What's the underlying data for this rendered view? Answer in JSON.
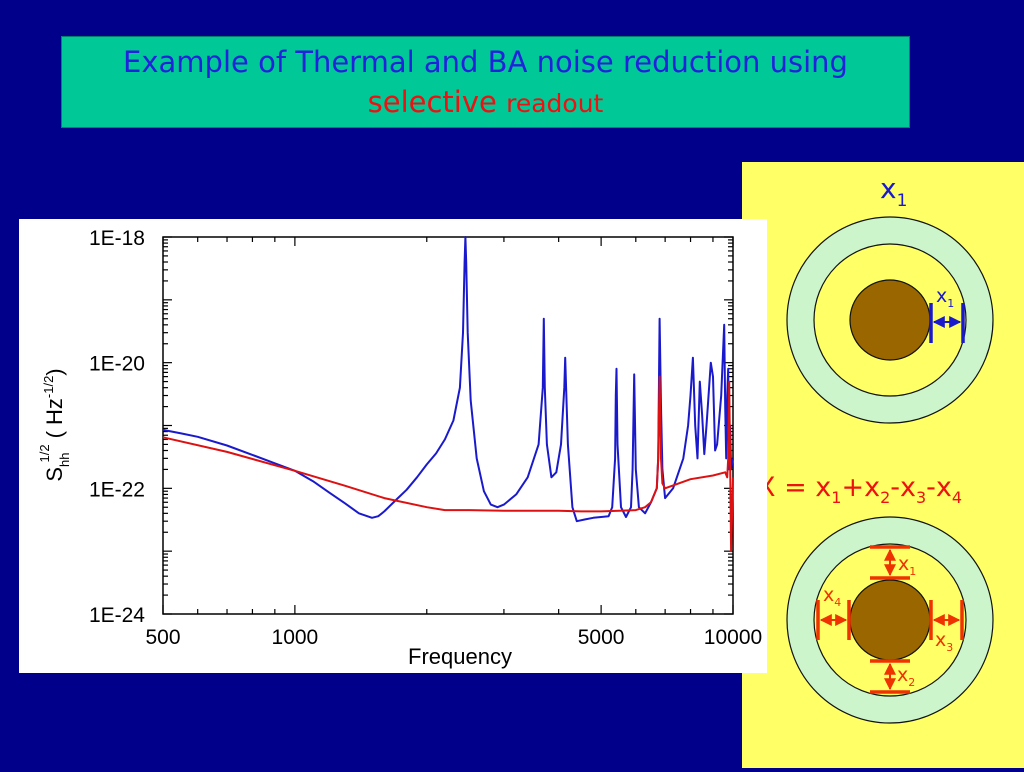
{
  "slide": {
    "title_line1": "Example of Thermal and BA noise reduction using",
    "title_line2_red": "selective",
    "title_line2_rest": "readout",
    "colors": {
      "background": "#00008b",
      "title_box": "#00c896",
      "title_text": "#2222dd",
      "accent_red": "#ee1111",
      "right_panel": "#ffff66",
      "ring": "#ccf5cc",
      "mass": "#996600"
    }
  },
  "diagram": {
    "top_label": {
      "main": "x",
      "sub": "1"
    },
    "top_inner_label": {
      "main": "x",
      "sub": "1"
    },
    "formula": [
      {
        "t": "X = x"
      },
      {
        "s": "1"
      },
      {
        "t": "+x"
      },
      {
        "s": "2"
      },
      {
        "t": "-x"
      },
      {
        "s": "3"
      },
      {
        "t": "-x"
      },
      {
        "s": "4"
      }
    ],
    "bottom_labels": {
      "x1": {
        "main": "x",
        "sub": "1"
      },
      "x2": {
        "main": "x",
        "sub": "2"
      },
      "x3": {
        "main": "x",
        "sub": "3"
      },
      "x4": {
        "main": "x",
        "sub": "4"
      }
    }
  },
  "chart_data": {
    "type": "line",
    "xlabel": "Frequency",
    "ylabel": {
      "main": "S",
      "sub": "hh",
      "sup": "1/2",
      "unit_open": "( Hz",
      "unit_sup": "-1/2",
      "unit_close": ")"
    },
    "x_scale": "log",
    "y_scale": "log",
    "xlim": [
      500,
      10000
    ],
    "ylim": [
      1e-24,
      1e-18
    ],
    "x_ticks": [
      {
        "v": 500,
        "label": "500"
      },
      {
        "v": 1000,
        "label": "1000"
      },
      {
        "v": 5000,
        "label": "5000"
      },
      {
        "v": 10000,
        "label": "10000"
      }
    ],
    "y_ticks": [
      {
        "v": 1e-18,
        "label": "1E-18"
      },
      {
        "v": 1e-20,
        "label": "1E-20"
      },
      {
        "v": 1e-22,
        "label": "1E-22"
      },
      {
        "v": 1e-24,
        "label": "1E-24"
      }
    ],
    "series": [
      {
        "color": "#1a1acc",
        "x": [
          500,
          550,
          600,
          700,
          800,
          900,
          1000,
          1100,
          1200,
          1300,
          1400,
          1500,
          1550,
          1600,
          1700,
          1800,
          1900,
          2000,
          2100,
          2200,
          2300,
          2380,
          2420,
          2440,
          2450,
          2460,
          2480,
          2520,
          2600,
          2700,
          2800,
          2900,
          3000,
          3200,
          3400,
          3600,
          3680,
          3700,
          3720,
          3760,
          3850,
          3950,
          4050,
          4120,
          4140,
          4160,
          4200,
          4300,
          4400,
          4600,
          4800,
          5000,
          5200,
          5300,
          5380,
          5400,
          5420,
          5450,
          5550,
          5700,
          5850,
          5900,
          5950,
          6000,
          6100,
          6300,
          6500,
          6700,
          6750,
          6800,
          6850,
          6900,
          7000,
          7300,
          7700,
          7900,
          8000,
          8100,
          8200,
          8300,
          8400,
          8500,
          8600,
          8700,
          8900,
          9000,
          9100,
          9200,
          9400,
          9550,
          9600,
          9650,
          9700,
          9750,
          9800,
          9850,
          9900,
          10000
        ],
        "y": [
          8.5e-22,
          7.5e-22,
          6.6e-22,
          4.8e-22,
          3.4e-22,
          2.5e-22,
          1.9e-22,
          1.3e-22,
          8.5e-23,
          5.8e-23,
          4e-23,
          3.4e-23,
          3.6e-23,
          4.3e-23,
          6.5e-23,
          9.5e-23,
          1.5e-22,
          2.4e-22,
          3.6e-22,
          6e-22,
          1.2e-21,
          4e-21,
          3e-20,
          4e-19,
          1e-18,
          4e-19,
          3e-20,
          2.5e-21,
          3e-22,
          9e-23,
          5.5e-23,
          5e-23,
          5.5e-23,
          8e-23,
          1.5e-22,
          5e-22,
          4e-21,
          5e-20,
          4e-21,
          5e-22,
          1.5e-22,
          1.8e-22,
          5e-22,
          4e-21,
          1.2e-20,
          4e-21,
          5e-22,
          5e-23,
          3e-23,
          3.2e-23,
          3.4e-23,
          3.5e-23,
          3.6e-23,
          5e-23,
          3e-22,
          3e-21,
          8e-21,
          5e-22,
          5e-23,
          3.5e-23,
          5e-23,
          2e-22,
          6.5e-21,
          2e-22,
          5e-23,
          4e-23,
          6e-23,
          1e-22,
          3e-22,
          5e-20,
          2e-21,
          2e-22,
          7e-23,
          1e-22,
          3e-22,
          1e-21,
          3e-21,
          1.2e-20,
          1e-21,
          3e-22,
          5e-21,
          1.5e-21,
          3.5e-22,
          1e-21,
          1e-20,
          6e-21,
          4e-22,
          5e-22,
          3e-21,
          4e-20,
          2e-21,
          3e-22,
          3e-21,
          8e-21,
          2e-22,
          1e-21,
          2e-22,
          3e-22
        ]
      },
      {
        "color": "#dd1111",
        "x": [
          500,
          700,
          1000,
          1300,
          1600,
          2000,
          2200,
          2500,
          3000,
          3500,
          4000,
          4500,
          5000,
          5500,
          6000,
          6300,
          6500,
          6700,
          6750,
          6800,
          6850,
          6900,
          7000,
          8000,
          9000,
          9600,
          9700,
          9750,
          9800,
          9850,
          9900,
          10000
        ],
        "y": [
          6.5e-22,
          3.8e-22,
          1.9e-22,
          1.1e-22,
          7e-23,
          5e-23,
          4.5e-23,
          4.5e-23,
          4.4e-23,
          4.4e-23,
          4.4e-23,
          4.3e-23,
          4.3e-23,
          4.4e-23,
          4.5e-23,
          5e-23,
          6e-23,
          1e-22,
          3e-22,
          6e-21,
          3e-22,
          1.2e-22,
          1e-22,
          1.4e-22,
          1.6e-22,
          1.8e-22,
          1.5e-22,
          3e-22,
          5e-21,
          3e-22,
          1e-23,
          1.5e-22
        ]
      }
    ]
  }
}
